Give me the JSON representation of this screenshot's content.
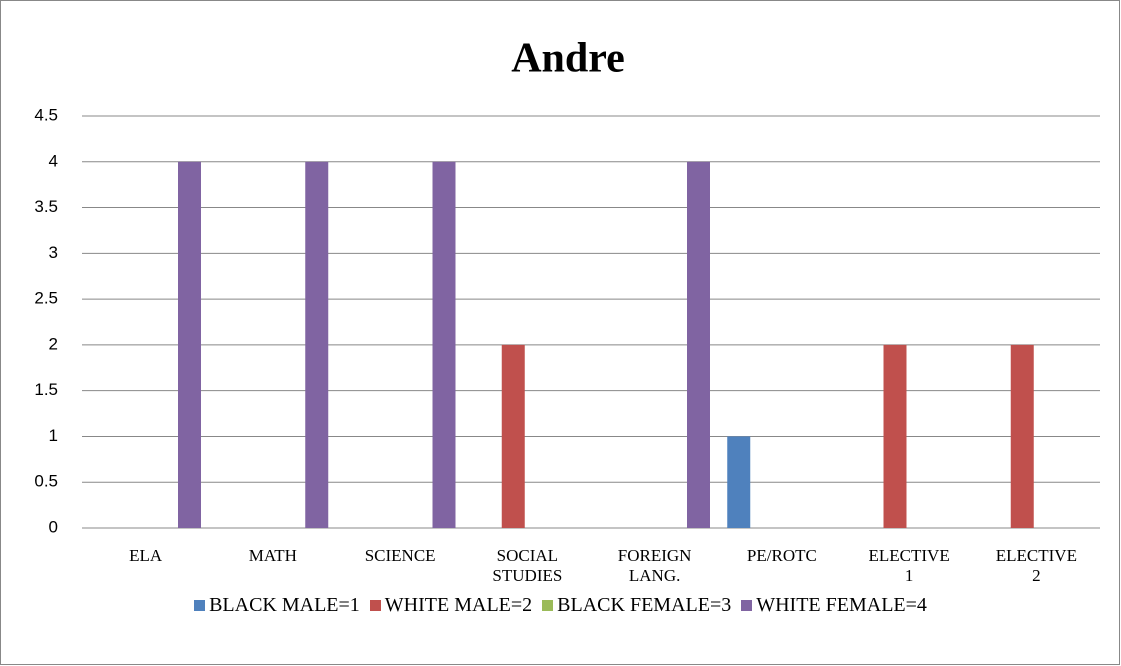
{
  "chart_data": {
    "type": "bar",
    "title": "Andre",
    "categories": [
      "ELA",
      "MATH",
      "SCIENCE",
      "SOCIAL STUDIES",
      "FOREIGN LANG.",
      "PE/ROTC",
      "ELECTIVE 1",
      "ELECTIVE 2"
    ],
    "series": [
      {
        "name": "BLACK MALE=1",
        "color": "#4f81bd",
        "values": [
          null,
          null,
          null,
          null,
          null,
          1,
          null,
          null
        ]
      },
      {
        "name": "WHITE MALE=2",
        "color": "#c0504d",
        "values": [
          null,
          null,
          null,
          2,
          null,
          null,
          2,
          2
        ]
      },
      {
        "name": "BLACK FEMALE=3",
        "color": "#9bbb59",
        "values": [
          null,
          null,
          null,
          null,
          null,
          null,
          null,
          null
        ]
      },
      {
        "name": "WHITE FEMALE=4",
        "color": "#8064a2",
        "values": [
          4,
          4,
          4,
          null,
          4,
          null,
          null,
          null
        ]
      }
    ],
    "ylim": [
      0,
      4.5
    ],
    "yticks": [
      0,
      0.5,
      1,
      1.5,
      2,
      2.5,
      3,
      3.5,
      4,
      4.5
    ],
    "grid": true,
    "legend": "bottom"
  }
}
